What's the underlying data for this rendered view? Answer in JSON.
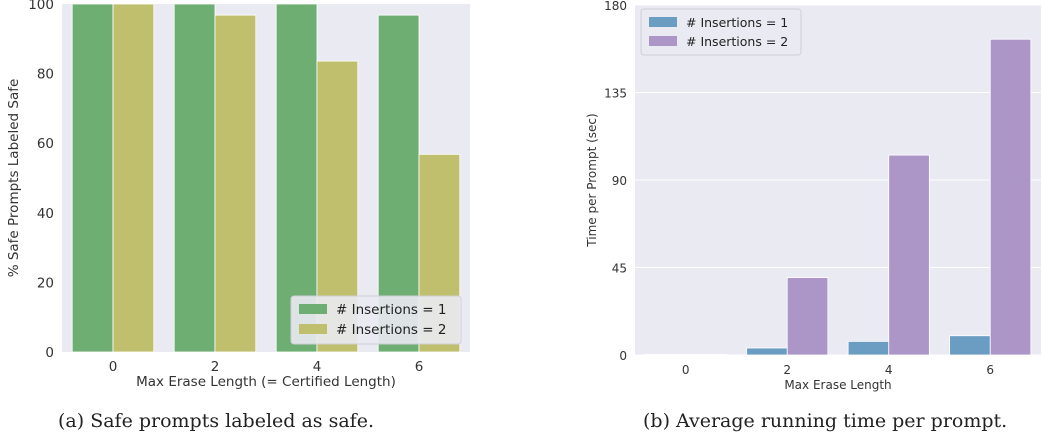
{
  "captions": {
    "a": "(a) Safe prompts labeled as safe.",
    "b": "(b) Average running time per prompt."
  },
  "colors": {
    "plot_bg": "#eaeaf2",
    "grid": "#ffffff",
    "a_series1": "#6fae72",
    "a_series2": "#bfbf6e",
    "b_series1": "#6b9cc2",
    "b_series2": "#ac96c8"
  },
  "chart_data": [
    {
      "type": "bar",
      "categories": [
        "0",
        "2",
        "4",
        "6"
      ],
      "series": [
        {
          "name": "# Insertions = 1",
          "values": [
            100,
            100,
            100,
            96.8
          ]
        },
        {
          "name": "# Insertions = 2",
          "values": [
            100,
            96.8,
            83.6,
            56.8
          ]
        }
      ],
      "title": "",
      "xlabel": "Max Erase Length (= Certified Length)",
      "ylabel": "% Safe Prompts Labeled Safe",
      "ylim": [
        0,
        100
      ],
      "yticks": [
        "0",
        "20",
        "40",
        "60",
        "80",
        "100"
      ],
      "legend": "bottom-right",
      "grid": false
    },
    {
      "type": "bar",
      "categories": [
        "0",
        "2",
        "4",
        "6"
      ],
      "series": [
        {
          "name": "# Insertions = 1",
          "values": [
            0.3,
            3.6,
            7.0,
            9.9
          ]
        },
        {
          "name": "# Insertions = 2",
          "values": [
            0.3,
            39.8,
            102.8,
            162.4
          ]
        }
      ],
      "title": "",
      "xlabel": "Max Erase Length",
      "ylabel": "Time per Prompt (sec)",
      "ylim": [
        0,
        180
      ],
      "yticks": [
        "0",
        "45",
        "90",
        "135",
        "180"
      ],
      "legend": "top-left",
      "grid": true
    }
  ]
}
